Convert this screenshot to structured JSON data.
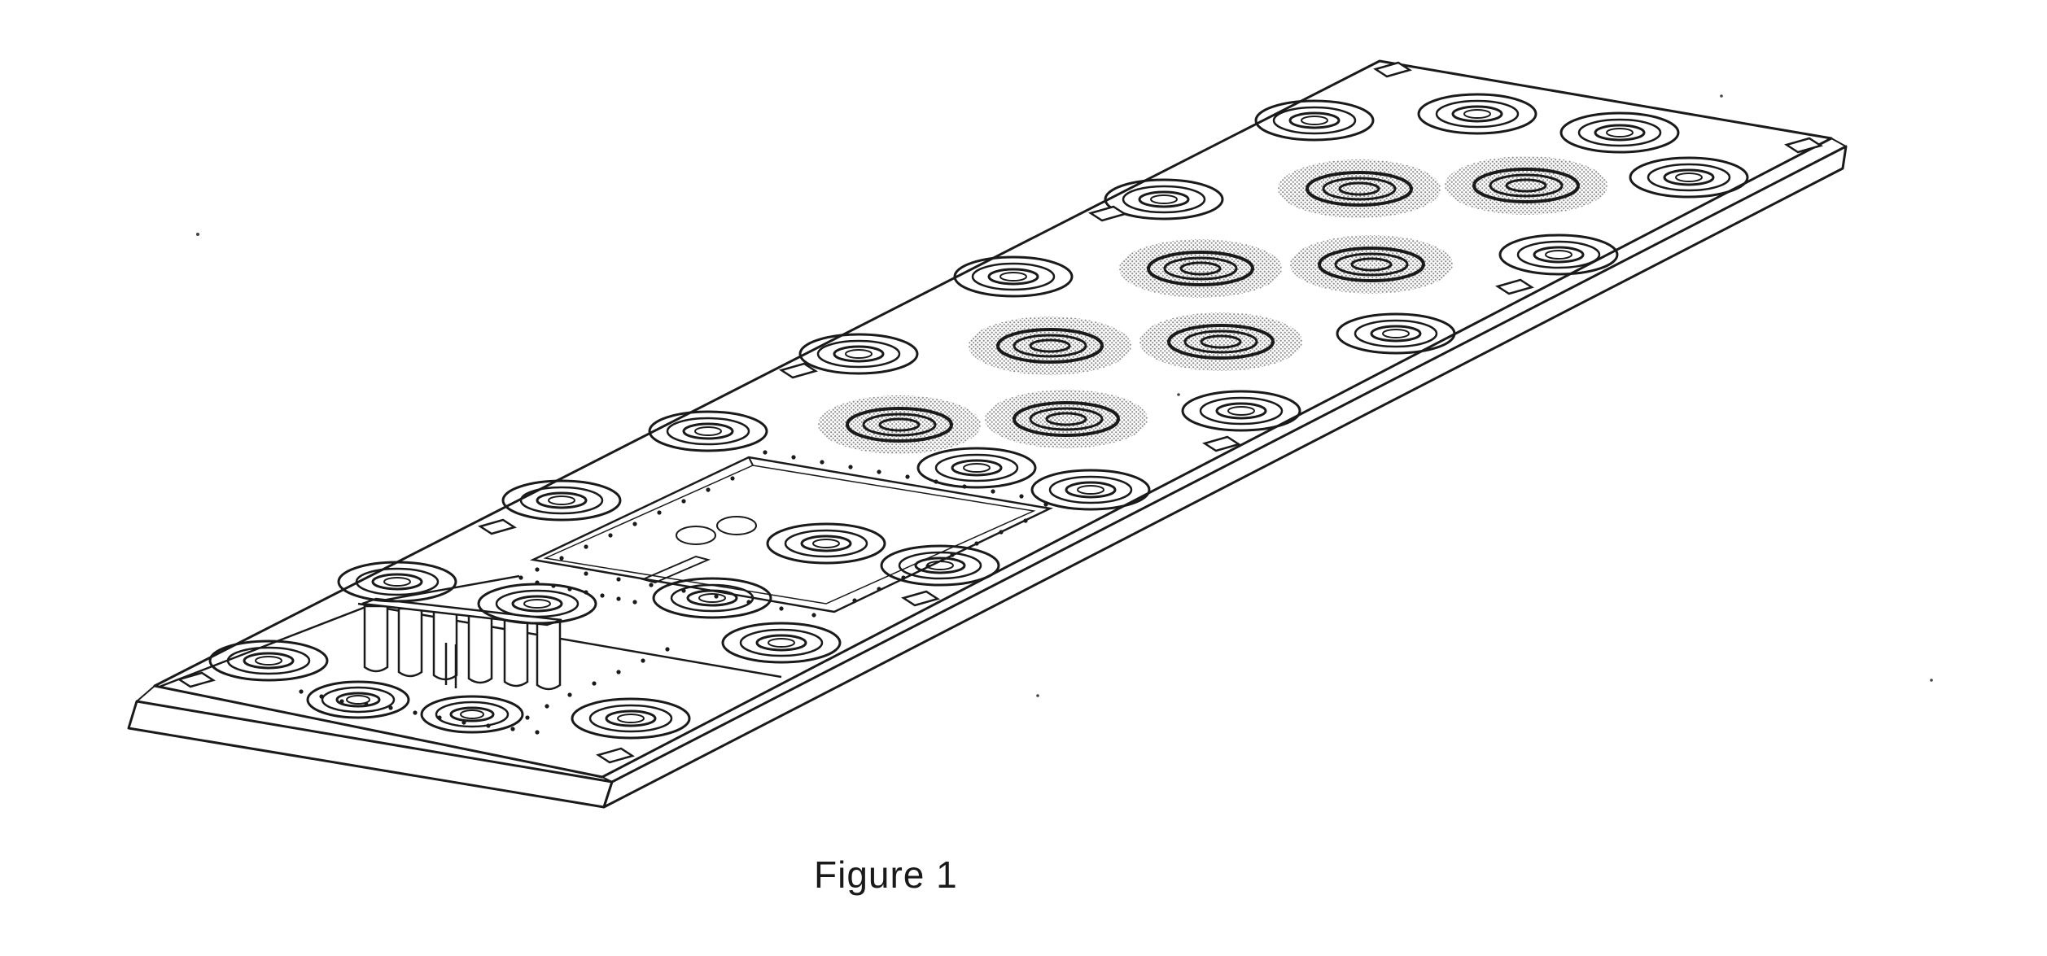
{
  "figure": {
    "caption": "Figure 1"
  },
  "colors": {
    "line": "#1a1a1a",
    "hatch": "#9a9a9a",
    "background": "#ffffff"
  }
}
